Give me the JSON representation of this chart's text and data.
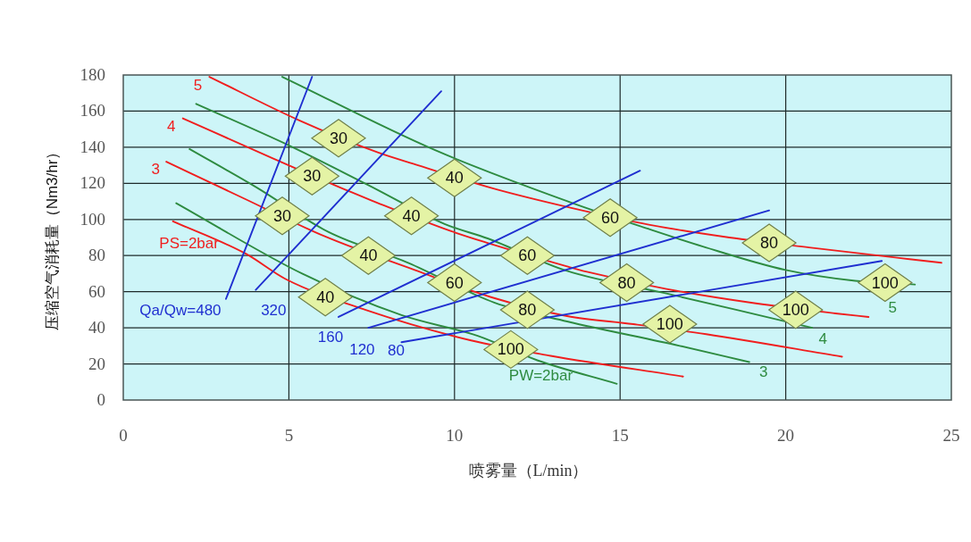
{
  "chart_data": {
    "type": "line",
    "xlabel": "喷雾量（L/min）",
    "ylabel": "压缩空气消耗量（Nm3/hr）",
    "xlim": [
      0,
      25
    ],
    "ylim": [
      0,
      180
    ],
    "xticks": [
      0,
      5,
      10,
      15,
      20,
      25
    ],
    "yticks": [
      0,
      20,
      40,
      60,
      80,
      100,
      120,
      140,
      160,
      180
    ],
    "grid": true,
    "line_style": "solid",
    "series": [
      {
        "name": "5",
        "color": "#f01e1e",
        "x": [
          2.6,
          5.3,
          7.7,
          8.9,
          11.2,
          13.5,
          15.9,
          18.3,
          20.7,
          24.7
        ],
        "values": [
          179,
          155,
          137,
          130,
          117,
          106.5,
          97,
          90,
          84.5,
          76
        ]
      },
      {
        "name": "4",
        "color": "#f01e1e",
        "x": [
          1.8,
          4.5,
          6.9,
          7.5,
          9.9,
          11.0,
          13.4,
          14.0,
          16.4,
          19.1,
          21.5,
          22.5
        ],
        "values": [
          156,
          134,
          115,
          110.5,
          93.5,
          87,
          74,
          71,
          61.5,
          53.5,
          48,
          46
        ]
      },
      {
        "name": "3",
        "color": "#f01e1e",
        "x": [
          1.3,
          3.6,
          6.1,
          8.8,
          11.1,
          13.4,
          15.4,
          17.6,
          21.7
        ],
        "values": [
          132,
          112,
          90.5,
          72,
          57,
          46.5,
          42,
          36.5,
          24
        ]
      },
      {
        "name": "PS=2bar",
        "color": "#f01e1e",
        "x": [
          1.5,
          3.7,
          4.9,
          7.3,
          10.5,
          12.9,
          16.9
        ],
        "values": [
          99,
          81,
          67,
          50,
          33,
          24.5,
          13
        ]
      },
      {
        "name": "5",
        "color": "#2e8b40",
        "x": [
          4.8,
          9.4,
          13.5,
          15.9,
          17.5,
          20.0,
          22.1,
          23.9
        ],
        "values": [
          179,
          138.5,
          109.5,
          94.5,
          85,
          72,
          66,
          64
        ]
      },
      {
        "name": "4",
        "color": "#2e8b40",
        "x": [
          2.2,
          5.0,
          7.4,
          9.7,
          11.0,
          13.4,
          16.4,
          18.5,
          20.8
        ],
        "values": [
          164,
          141,
          119,
          97.5,
          89.5,
          71.5,
          59,
          50,
          40
        ]
      },
      {
        "name": "3",
        "color": "#2e8b40",
        "x": [
          2.0,
          4.0,
          6.2,
          8.6,
          11.2,
          13.4,
          16.8,
          18.9
        ],
        "values": [
          139,
          118,
          93,
          76,
          54,
          43.5,
          30,
          21
        ]
      },
      {
        "name": "PW=2bar",
        "color": "#2e8b40",
        "x": [
          1.6,
          5.4,
          8.4,
          10.7,
          12.5,
          14.9
        ],
        "values": [
          109,
          70,
          47,
          35.5,
          22,
          9
        ]
      },
      {
        "name": "Qa/Qw=480",
        "color": "#1f2fd0",
        "x": [
          3.1,
          5.7
        ],
        "values": [
          56,
          179
        ]
      },
      {
        "name": "320",
        "color": "#1f2fd0",
        "x": [
          4.0,
          9.6
        ],
        "values": [
          61,
          171
        ]
      },
      {
        "name": "160",
        "color": "#1f2fd0",
        "x": [
          6.5,
          15.6
        ],
        "values": [
          46,
          127
        ]
      },
      {
        "name": "120",
        "color": "#1f2fd0",
        "x": [
          7.4,
          19.5
        ],
        "values": [
          40,
          105
        ]
      },
      {
        "name": "80",
        "color": "#1f2fd0",
        "x": [
          8.4,
          22.9
        ],
        "values": [
          32,
          77
        ]
      }
    ],
    "annotations": [
      {
        "text": "30",
        "x": 6.5,
        "y": 145
      },
      {
        "text": "40",
        "x": 10.0,
        "y": 123
      },
      {
        "text": "60",
        "x": 14.7,
        "y": 101
      },
      {
        "text": "80",
        "x": 19.5,
        "y": 87
      },
      {
        "text": "100",
        "x": 23.0,
        "y": 65
      },
      {
        "text": "30",
        "x": 5.7,
        "y": 124
      },
      {
        "text": "40",
        "x": 8.7,
        "y": 102
      },
      {
        "text": "60",
        "x": 12.2,
        "y": 80
      },
      {
        "text": "80",
        "x": 15.2,
        "y": 65
      },
      {
        "text": "100",
        "x": 20.3,
        "y": 50
      },
      {
        "text": "30",
        "x": 4.8,
        "y": 102
      },
      {
        "text": "40",
        "x": 7.4,
        "y": 80
      },
      {
        "text": "60",
        "x": 10.0,
        "y": 65
      },
      {
        "text": "80",
        "x": 12.2,
        "y": 50
      },
      {
        "text": "100",
        "x": 16.5,
        "y": 42
      },
      {
        "text": "40",
        "x": 6.1,
        "y": 57
      },
      {
        "text": "100",
        "x": 11.7,
        "y": 28
      }
    ]
  }
}
